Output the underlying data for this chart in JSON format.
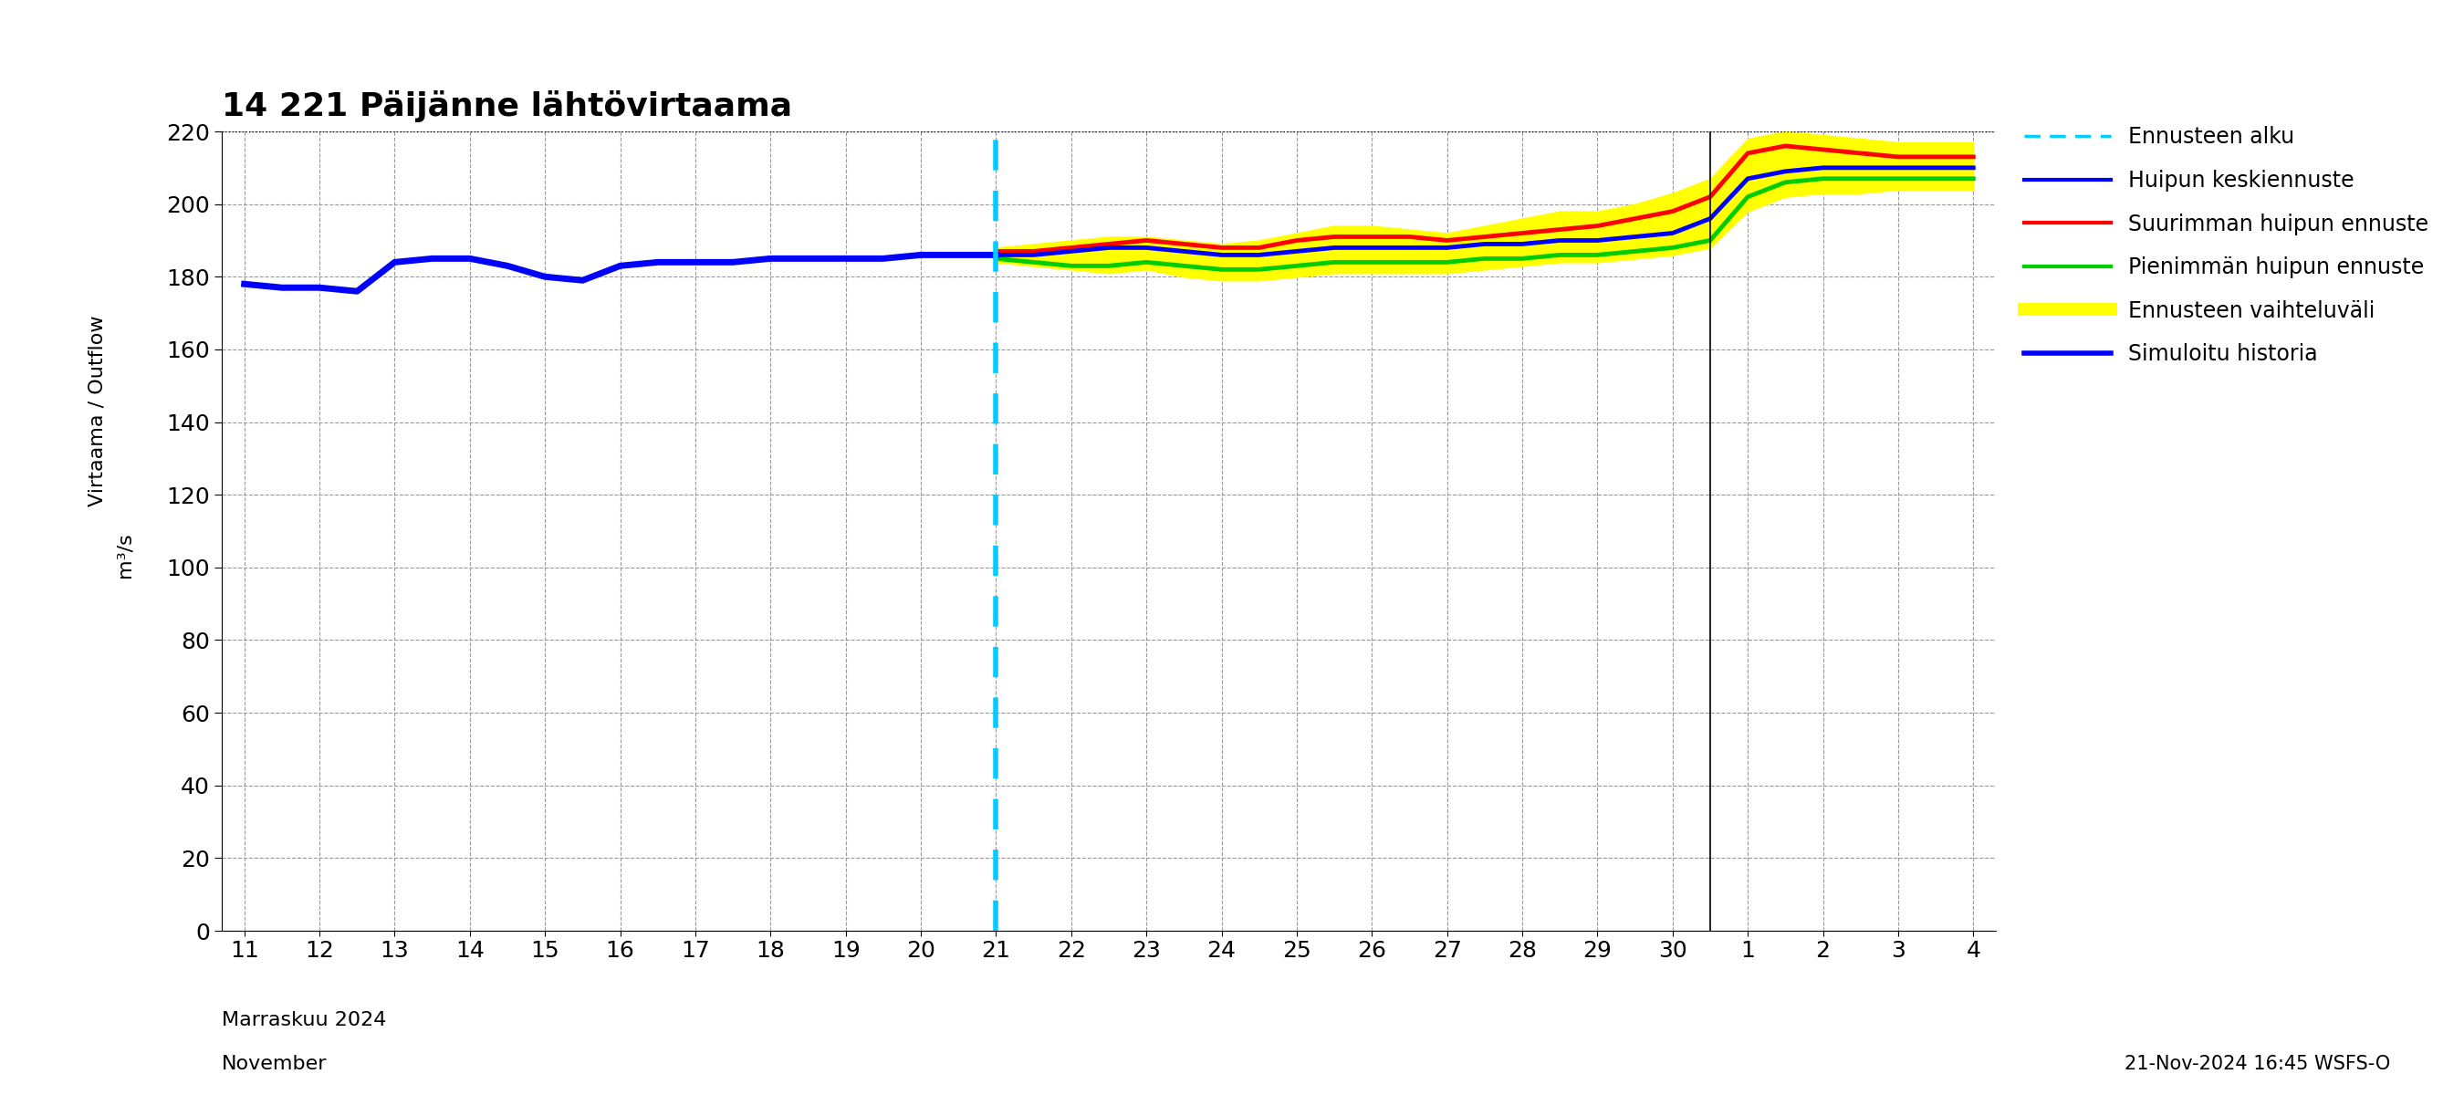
{
  "title": "14 221 Päijänne lähtövirtaama",
  "ylabel_line1": "Virtaama / Outflow",
  "ylabel_line2": "m³/s",
  "xlabel_line1": "Marraskuu 2024",
  "xlabel_line2": "November",
  "timestamp": "21-Nov-2024 16:45 WSFS-O",
  "ylim": [
    0,
    220
  ],
  "yticks": [
    0,
    20,
    40,
    60,
    80,
    100,
    120,
    140,
    160,
    180,
    200,
    220
  ],
  "xtick_labels": [
    "11",
    "12",
    "13",
    "14",
    "15",
    "16",
    "17",
    "18",
    "19",
    "20",
    "21",
    "22",
    "23",
    "24",
    "25",
    "26",
    "27",
    "28",
    "29",
    "30",
    "1",
    "2",
    "3",
    "4"
  ],
  "background_color": "#ffffff",
  "grid_color": "#999999",
  "sim_historia_x": [
    0,
    0.5,
    1,
    1.5,
    2,
    2.5,
    3,
    3.5,
    4,
    4.5,
    5,
    5.5,
    6,
    6.5,
    7,
    7.5,
    8,
    8.5,
    9,
    9.5,
    10
  ],
  "sim_historia_y": [
    178,
    177,
    177,
    176,
    184,
    185,
    185,
    183,
    180,
    179,
    183,
    184,
    184,
    184,
    185,
    185,
    185,
    185,
    186,
    186,
    186
  ],
  "mean_forecast_x": [
    10,
    10.5,
    11,
    11.5,
    12,
    12.5,
    13,
    13.5,
    14,
    14.5,
    15,
    15.5,
    16,
    16.5,
    17,
    17.5,
    18,
    18.5,
    19,
    19.5,
    20,
    20.5,
    21,
    21.5,
    22,
    22.5,
    23
  ],
  "mean_forecast_y": [
    186,
    186,
    187,
    188,
    188,
    187,
    186,
    186,
    187,
    188,
    188,
    188,
    188,
    189,
    189,
    190,
    190,
    191,
    192,
    196,
    207,
    209,
    210,
    210,
    210,
    210,
    210
  ],
  "max_forecast_x": [
    10,
    10.5,
    11,
    11.5,
    12,
    12.5,
    13,
    13.5,
    14,
    14.5,
    15,
    15.5,
    16,
    16.5,
    17,
    17.5,
    18,
    18.5,
    19,
    19.5,
    20,
    20.5,
    21,
    21.5,
    22,
    22.5,
    23
  ],
  "max_forecast_y": [
    187,
    187,
    188,
    189,
    190,
    189,
    188,
    188,
    190,
    191,
    191,
    191,
    190,
    191,
    192,
    193,
    194,
    196,
    198,
    202,
    214,
    216,
    215,
    214,
    213,
    213,
    213
  ],
  "min_forecast_x": [
    10,
    10.5,
    11,
    11.5,
    12,
    12.5,
    13,
    13.5,
    14,
    14.5,
    15,
    15.5,
    16,
    16.5,
    17,
    17.5,
    18,
    18.5,
    19,
    19.5,
    20,
    20.5,
    21,
    21.5,
    22,
    22.5,
    23
  ],
  "min_forecast_y": [
    185,
    184,
    183,
    183,
    184,
    183,
    182,
    182,
    183,
    184,
    184,
    184,
    184,
    185,
    185,
    186,
    186,
    187,
    188,
    190,
    202,
    206,
    207,
    207,
    207,
    207,
    207
  ],
  "band_upper_x": [
    10,
    10.5,
    11,
    11.5,
    12,
    12.5,
    13,
    13.5,
    14,
    14.5,
    15,
    15.5,
    16,
    16.5,
    17,
    17.5,
    18,
    18.5,
    19,
    19.5,
    20,
    20.5,
    21,
    21.5,
    22,
    22.5,
    23
  ],
  "band_upper_y": [
    188,
    189,
    190,
    191,
    191,
    190,
    189,
    190,
    192,
    194,
    194,
    193,
    192,
    194,
    196,
    198,
    198,
    200,
    203,
    207,
    218,
    220,
    219,
    218,
    217,
    217,
    217
  ],
  "band_lower_x": [
    10,
    10.5,
    11,
    11.5,
    12,
    12.5,
    13,
    13.5,
    14,
    14.5,
    15,
    15.5,
    16,
    16.5,
    17,
    17.5,
    18,
    18.5,
    19,
    19.5,
    20,
    20.5,
    21,
    21.5,
    22,
    22.5,
    23
  ],
  "band_lower_y": [
    184,
    183,
    182,
    181,
    182,
    180,
    179,
    179,
    180,
    181,
    181,
    181,
    181,
    182,
    183,
    184,
    184,
    185,
    186,
    188,
    198,
    202,
    203,
    203,
    204,
    204,
    204
  ]
}
